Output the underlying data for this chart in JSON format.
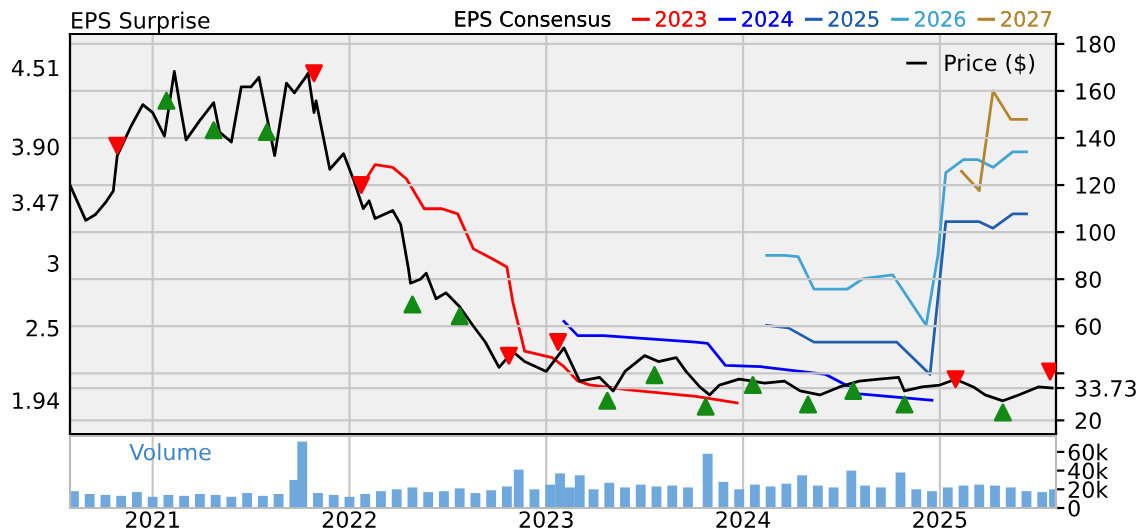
{
  "chart_data": [
    {
      "type": "line",
      "title": "EPS Surprise",
      "legend_title": "EPS Consensus",
      "xlim": [
        2020.58,
        2025.59
      ],
      "xticks": [
        2021,
        2022,
        2023,
        2024,
        2025
      ],
      "ylim": [
        1.68,
        4.77
      ],
      "yticks": [
        {
          "value": 1.94,
          "label": "1.94"
        },
        {
          "value": 2.5,
          "label": "2.5"
        },
        3,
        {
          "value": 3.47,
          "label": "3.47"
        },
        {
          "value": 3.9,
          "label": "3.90"
        },
        {
          "value": 4.51,
          "label": "4.51"
        }
      ],
      "y2lim": [
        14.2,
        184.2
      ],
      "y2ticks": [
        20,
        {
          "value": 33.73,
          "label": "33.73"
        },
        {
          "value": 40,
          "label": null
        },
        60,
        80,
        100,
        120,
        140,
        160,
        180
      ],
      "grid": true,
      "legend": "top",
      "tick_labels": "y",
      "line_style": "solid",
      "marker": "none",
      "series": [
        {
          "name": "Price ($)",
          "color": "#000000",
          "axis": "y2",
          "x": [
            2020.58,
            2020.66,
            2020.71,
            2020.76,
            2020.8,
            2020.82,
            2020.89,
            2020.95,
            2021.0,
            2021.06,
            2021.11,
            2021.14,
            2021.17,
            2021.24,
            2021.31,
            2021.34,
            2021.4,
            2021.45,
            2021.5,
            2021.54,
            2021.62,
            2021.68,
            2021.72,
            2021.77,
            2021.79,
            2021.82,
            2021.83,
            2021.9,
            2021.97,
            2022.02,
            2022.07,
            2022.1,
            2022.13,
            2022.22,
            2022.26,
            2022.3,
            2022.31,
            2022.36,
            2022.39,
            2022.44,
            2022.49,
            2022.56,
            2022.63,
            2022.69,
            2022.76,
            2022.83,
            2022.89,
            2023.0,
            2023.09,
            2023.17,
            2023.27,
            2023.34,
            2023.4,
            2023.5,
            2023.57,
            2023.66,
            2023.71,
            2023.78,
            2023.83,
            2023.88,
            2023.98,
            2024.05,
            2024.11,
            2024.21,
            2024.29,
            2024.39,
            2024.49,
            2024.59,
            2024.69,
            2024.79,
            2024.82,
            2024.91,
            2025.0,
            2025.08,
            2025.17,
            2025.23,
            2025.32,
            2025.4,
            2025.5,
            2025.57
          ],
          "values": [
            120,
            105,
            107.5,
            112.5,
            117.5,
            132.5,
            145,
            154.2,
            150.8,
            140.8,
            168.3,
            153.3,
            139.2,
            147.5,
            155,
            142.5,
            138.3,
            161.7,
            161.7,
            165.8,
            132.5,
            163.3,
            159.2,
            165,
            167.5,
            150.8,
            155.8,
            126.7,
            133.3,
            122.5,
            110,
            113.3,
            105.8,
            109.2,
            103.3,
            84.2,
            78.3,
            80,
            82.5,
            71.7,
            74.2,
            68.3,
            60,
            53.3,
            42.5,
            49.2,
            45,
            40.8,
            50.8,
            36.7,
            38.3,
            32.5,
            40.8,
            47.5,
            45,
            46.7,
            40.8,
            34.2,
            30.8,
            35,
            37.5,
            36.7,
            35.8,
            36.7,
            32.5,
            30.8,
            34.2,
            36.7,
            37.5,
            38.3,
            32.5,
            34.2,
            35,
            37.5,
            34.2,
            30.8,
            28.3,
            30.8,
            34.2,
            33.73
          ]
        },
        {
          "name": "2023",
          "color": "#ff0000",
          "x": [
            2022.08,
            2022.13,
            2022.22,
            2022.29,
            2022.38,
            2022.47,
            2022.55,
            2022.63,
            2022.73,
            2022.8,
            2022.83,
            2022.89,
            2023.03,
            2023.09,
            2023.16,
            2023.22,
            2023.42,
            2023.76,
            2023.97
          ],
          "values": [
            3.64,
            3.76,
            3.74,
            3.65,
            3.42,
            3.42,
            3.38,
            3.11,
            3.03,
            2.97,
            2.7,
            2.32,
            2.27,
            2.2,
            2.09,
            2.06,
            2.02,
            1.97,
            1.92
          ]
        },
        {
          "name": "2024",
          "color": "#0000ff",
          "x": [
            2023.09,
            2023.16,
            2023.29,
            2023.76,
            2023.82,
            2023.91,
            2024.09,
            2024.42,
            2024.52,
            2024.59,
            2024.96
          ],
          "values": [
            2.55,
            2.44,
            2.44,
            2.39,
            2.38,
            2.21,
            2.2,
            2.14,
            2.06,
            1.99,
            1.94
          ]
        },
        {
          "name": "2025",
          "color": "#1f5fad",
          "x": [
            2024.12,
            2024.23,
            2024.36,
            2024.53,
            2024.78,
            2024.95,
            2025.03,
            2025.2,
            2025.27,
            2025.37,
            2025.44
          ],
          "values": [
            2.52,
            2.5,
            2.39,
            2.39,
            2.39,
            2.14,
            3.32,
            3.32,
            3.27,
            3.38,
            3.38
          ]
        },
        {
          "name": "2026",
          "color": "#40a4d4",
          "x": [
            2024.12,
            2024.21,
            2024.28,
            2024.36,
            2024.53,
            2024.61,
            2024.76,
            2024.93,
            2024.99,
            2025.03,
            2025.12,
            2025.19,
            2025.27,
            2025.37,
            2025.44
          ],
          "values": [
            3.06,
            3.06,
            3.05,
            2.8,
            2.8,
            2.88,
            2.91,
            2.52,
            3.06,
            3.7,
            3.8,
            3.8,
            3.74,
            3.86,
            3.86
          ]
        },
        {
          "name": "2027",
          "color": "#b5852e",
          "x": [
            2025.11,
            2025.2,
            2025.27,
            2025.36,
            2025.44
          ],
          "values": [
            3.71,
            3.56,
            4.33,
            4.11,
            4.11
          ]
        },
        {
          "type": "scatter",
          "color": "#138a13",
          "axis": "y2",
          "marker": "triangle",
          "x": [
            2021.07,
            2021.31,
            2021.58,
            2022.32,
            2022.56,
            2023.31,
            2023.55,
            2023.81,
            2024.05,
            2024.33,
            2024.56,
            2024.82,
            2025.32
          ],
          "values": [
            155.8,
            143.3,
            142.5,
            69.2,
            64.2,
            28.3,
            39.2,
            25.8,
            35,
            26.7,
            32.5,
            26.7,
            23.3
          ]
        },
        {
          "type": "scatter",
          "color": "#ff0000",
          "axis": "y2",
          "marker": "triangle-down",
          "x": [
            2020.82,
            2021.82,
            2022.06,
            2022.81,
            2023.06,
            2025.08,
            2025.56
          ],
          "values": [
            136.7,
            167.5,
            120,
            47.5,
            53.3,
            37.5,
            40.8
          ]
        }
      ]
    },
    {
      "type": "bar",
      "title": "Volume",
      "color": "#6fa8dc",
      "xlim": [
        2020.58,
        2025.59
      ],
      "xticks": [
        2021,
        2022,
        2023,
        2024,
        2025
      ],
      "ylim": [
        0,
        77000
      ],
      "yticks": [
        0,
        {
          "value": 20000,
          "label": "20k"
        },
        {
          "value": 40000,
          "label": "40k"
        },
        {
          "value": 60000,
          "label": "60k"
        }
      ],
      "grid": "x",
      "x": [
        2020.6,
        2020.68,
        2020.76,
        2020.84,
        2020.92,
        2021.0,
        2021.08,
        2021.16,
        2021.24,
        2021.32,
        2021.4,
        2021.48,
        2021.56,
        2021.64,
        2021.72,
        2021.76,
        2021.84,
        2021.92,
        2022.0,
        2022.08,
        2022.16,
        2022.24,
        2022.32,
        2022.4,
        2022.48,
        2022.56,
        2022.64,
        2022.72,
        2022.8,
        2022.86,
        2022.94,
        2023.02,
        2023.07,
        2023.12,
        2023.17,
        2023.24,
        2023.32,
        2023.4,
        2023.48,
        2023.56,
        2023.64,
        2023.72,
        2023.82,
        2023.9,
        2023.98,
        2024.06,
        2024.14,
        2024.22,
        2024.3,
        2024.38,
        2024.46,
        2024.55,
        2024.62,
        2024.7,
        2024.8,
        2024.88,
        2024.96,
        2025.04,
        2025.12,
        2025.2,
        2025.28,
        2025.36,
        2025.44,
        2025.52,
        2025.58
      ],
      "values": [
        18000,
        15000,
        14000,
        13000,
        17000,
        12000,
        14000,
        13000,
        15000,
        14000,
        12000,
        16000,
        13000,
        15000,
        30000,
        71000,
        16000,
        14000,
        12000,
        15000,
        18000,
        20000,
        22000,
        17000,
        18000,
        21000,
        16000,
        19000,
        23000,
        41000,
        20000,
        25000,
        37000,
        22000,
        35000,
        20000,
        27000,
        22000,
        25000,
        23000,
        24000,
        22000,
        58000,
        28000,
        20000,
        25000,
        23000,
        26000,
        35000,
        24000,
        22000,
        40000,
        24000,
        22000,
        38000,
        20000,
        18000,
        22000,
        24000,
        25000,
        24000,
        22000,
        18000,
        17000,
        20000
      ]
    }
  ]
}
